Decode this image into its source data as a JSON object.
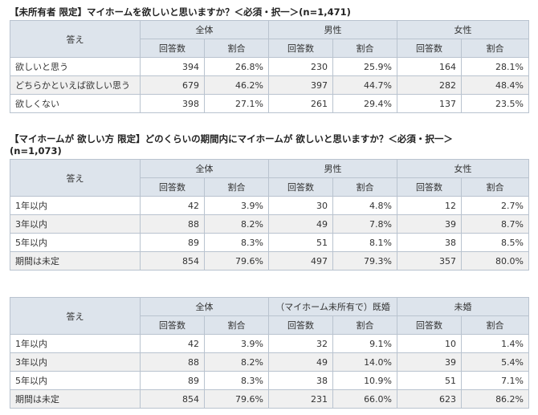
{
  "tables": [
    {
      "title": "【未所有者 限定】マイホームを欲しいと思いますか？＜必須・択一＞(n=1,471)",
      "title_line2": "",
      "answer_header": "答え",
      "group_headers": [
        "全体",
        "男性",
        "女性"
      ],
      "sub_headers": [
        "回答数",
        "割合"
      ],
      "rows": [
        {
          "label": "欲しいと思う",
          "values": [
            "394",
            "26.8%",
            "230",
            "25.9%",
            "164",
            "28.1%"
          ]
        },
        {
          "label": "どちらかといえば欲しい思う",
          "values": [
            "679",
            "46.2%",
            "397",
            "44.7%",
            "282",
            "48.4%"
          ]
        },
        {
          "label": "欲しくない",
          "values": [
            "398",
            "27.1%",
            "261",
            "29.4%",
            "137",
            "23.5%"
          ]
        }
      ]
    },
    {
      "title": "【マイホームが 欲しい方 限定】どのくらいの期間内にマイホームが 欲しいと思いますか？＜必須・択一＞",
      "title_line2": "(n=1,073)",
      "answer_header": "答え",
      "group_headers": [
        "全体",
        "男性",
        "女性"
      ],
      "sub_headers": [
        "回答数",
        "割合"
      ],
      "rows": [
        {
          "label": "1年以内",
          "values": [
            "42",
            "3.9%",
            "30",
            "4.8%",
            "12",
            "2.7%"
          ]
        },
        {
          "label": "3年以内",
          "values": [
            "88",
            "8.2%",
            "49",
            "7.8%",
            "39",
            "8.7%"
          ]
        },
        {
          "label": "5年以内",
          "values": [
            "89",
            "8.3%",
            "51",
            "8.1%",
            "38",
            "8.5%"
          ]
        },
        {
          "label": "期間は未定",
          "values": [
            "854",
            "79.6%",
            "497",
            "79.3%",
            "357",
            "80.0%"
          ]
        }
      ]
    },
    {
      "title": "",
      "title_line2": "",
      "answer_header": "答え",
      "group_headers": [
        "全体",
        "（マイホーム未所有で）既婚",
        "未婚"
      ],
      "sub_headers": [
        "回答数",
        "割合"
      ],
      "rows": [
        {
          "label": "1年以内",
          "values": [
            "42",
            "3.9%",
            "32",
            "9.1%",
            "10",
            "1.4%"
          ]
        },
        {
          "label": "3年以内",
          "values": [
            "88",
            "8.2%",
            "49",
            "14.0%",
            "39",
            "5.4%"
          ]
        },
        {
          "label": "5年以内",
          "values": [
            "89",
            "8.3%",
            "38",
            "10.9%",
            "51",
            "7.1%"
          ]
        },
        {
          "label": "期間は未定",
          "values": [
            "854",
            "79.6%",
            "231",
            "66.0%",
            "623",
            "86.2%"
          ]
        }
      ]
    }
  ]
}
